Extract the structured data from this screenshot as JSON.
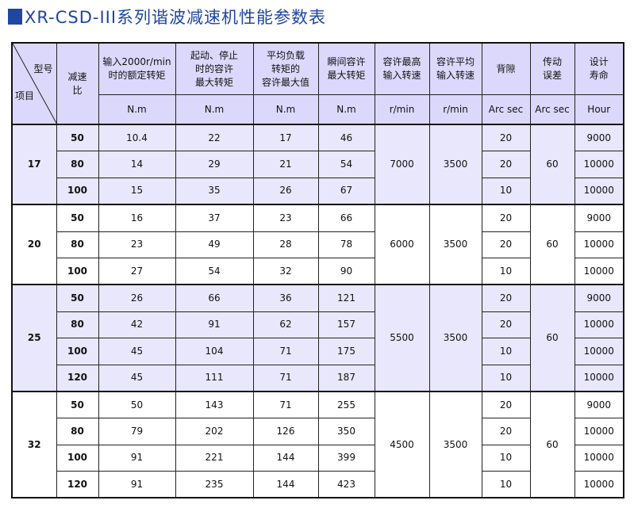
{
  "title": "XR-CSD-III系列谐波减速机性能参数表",
  "header": {
    "corner_top": "型号",
    "corner_bottom": "项目",
    "ratio": "减速比",
    "columns": [
      {
        "label": "输入2000r/min\n时的额定转矩",
        "unit": "N.m"
      },
      {
        "label": "起动、停止\n时的容许\n最大转矩",
        "unit": "N.m"
      },
      {
        "label": "平均负载\n转矩的\n容许最大值",
        "unit": "N.m"
      },
      {
        "label": "瞬间容许\n最大转矩",
        "unit": "N.m"
      },
      {
        "label": "容许最高\n输入转速",
        "unit": "r/min"
      },
      {
        "label": "容许平均\n输入转速",
        "unit": "r/min"
      },
      {
        "label": "背隙",
        "unit": "Arc sec"
      },
      {
        "label": "传动\n误差",
        "unit": "Arc sec"
      },
      {
        "label": "设计\n寿命",
        "unit": "Hour"
      }
    ]
  },
  "groups": [
    {
      "model": "17",
      "max_speed": "7000",
      "avg_speed": "3500",
      "error": "60",
      "rows": [
        {
          "ratio": "50",
          "rated": "10.4",
          "start_stop": "22",
          "avg_load": "17",
          "instant": "46",
          "backlash": "20",
          "life": "9000"
        },
        {
          "ratio": "80",
          "rated": "14",
          "start_stop": "29",
          "avg_load": "21",
          "instant": "54",
          "backlash": "20",
          "life": "10000"
        },
        {
          "ratio": "100",
          "rated": "15",
          "start_stop": "35",
          "avg_load": "26",
          "instant": "67",
          "backlash": "10",
          "life": "10000"
        }
      ]
    },
    {
      "model": "20",
      "max_speed": "6000",
      "avg_speed": "3500",
      "error": "60",
      "rows": [
        {
          "ratio": "50",
          "rated": "16",
          "start_stop": "37",
          "avg_load": "23",
          "instant": "66",
          "backlash": "20",
          "life": "9000"
        },
        {
          "ratio": "80",
          "rated": "23",
          "start_stop": "49",
          "avg_load": "28",
          "instant": "78",
          "backlash": "20",
          "life": "10000"
        },
        {
          "ratio": "100",
          "rated": "27",
          "start_stop": "54",
          "avg_load": "32",
          "instant": "90",
          "backlash": "10",
          "life": "10000"
        }
      ]
    },
    {
      "model": "25",
      "max_speed": "5500",
      "avg_speed": "3500",
      "error": "60",
      "rows": [
        {
          "ratio": "50",
          "rated": "26",
          "start_stop": "66",
          "avg_load": "36",
          "instant": "121",
          "backlash": "20",
          "life": "9000"
        },
        {
          "ratio": "80",
          "rated": "42",
          "start_stop": "91",
          "avg_load": "62",
          "instant": "157",
          "backlash": "20",
          "life": "10000"
        },
        {
          "ratio": "100",
          "rated": "45",
          "start_stop": "104",
          "avg_load": "71",
          "instant": "175",
          "backlash": "10",
          "life": "10000"
        },
        {
          "ratio": "120",
          "rated": "45",
          "start_stop": "111",
          "avg_load": "71",
          "instant": "187",
          "backlash": "10",
          "life": "10000"
        }
      ]
    },
    {
      "model": "32",
      "max_speed": "4500",
      "avg_speed": "3500",
      "error": "60",
      "rows": [
        {
          "ratio": "50",
          "rated": "50",
          "start_stop": "143",
          "avg_load": "71",
          "instant": "255",
          "backlash": "20",
          "life": "9000"
        },
        {
          "ratio": "80",
          "rated": "79",
          "start_stop": "202",
          "avg_load": "126",
          "instant": "350",
          "backlash": "20",
          "life": "10000"
        },
        {
          "ratio": "100",
          "rated": "91",
          "start_stop": "221",
          "avg_load": "144",
          "instant": "399",
          "backlash": "10",
          "life": "10000"
        },
        {
          "ratio": "120",
          "rated": "91",
          "start_stop": "235",
          "avg_load": "144",
          "instant": "423",
          "backlash": "10",
          "life": "10000"
        }
      ]
    }
  ]
}
